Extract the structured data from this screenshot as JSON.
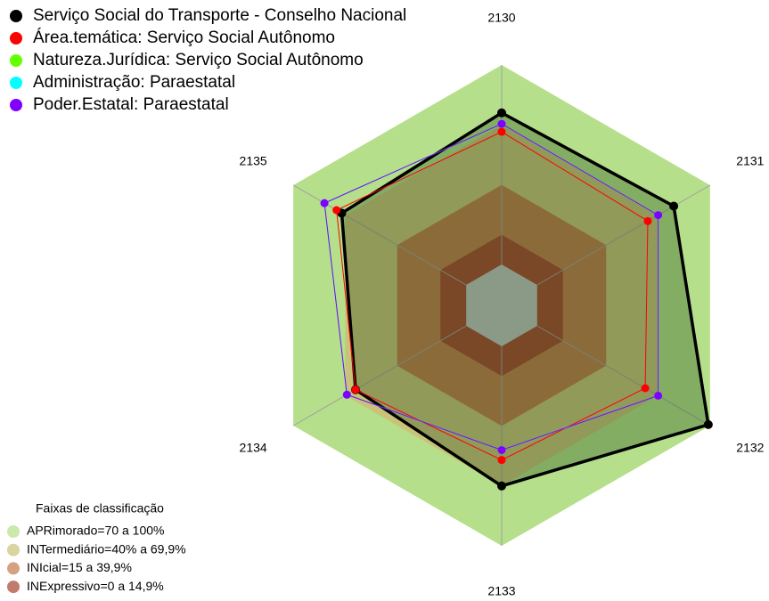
{
  "chart_data": {
    "type": "radar",
    "categories": [
      "2130",
      "2131",
      "2132",
      "2133",
      "2134",
      "2135"
    ],
    "rlim": [
      0,
      100
    ],
    "series": [
      {
        "name": "Serviço Social do Transporte - Conselho Nacional",
        "color": "#000000",
        "values": [
          76,
          79,
          99,
          70,
          64,
          72
        ]
      },
      {
        "name": "Área.temática: Serviço Social Autônomo",
        "color": "#ff0000",
        "values": [
          66.5,
          64,
          62.5,
          57,
          64,
          75
        ]
      },
      {
        "name": "Natureza.Jurídica: Serviço Social Autônomo",
        "color": "#66ff00",
        "values": [
          70.5,
          70,
          70,
          52,
          69,
          82
        ]
      },
      {
        "name": "Administração: Paraestatal",
        "color": "#00ffff",
        "values": [
          70.5,
          70,
          70,
          52,
          69,
          82
        ]
      },
      {
        "name": "Poder.Estatal: Paraestatal",
        "color": "#7f00ff",
        "values": [
          70.5,
          70,
          70,
          52,
          69,
          82
        ]
      }
    ],
    "bands_title": "Faixas de classificação",
    "bands": [
      {
        "name": "APRimorado=70 a 100%",
        "min": 70,
        "max": 100,
        "color": "#b5df8a"
      },
      {
        "name": "INTermediário=40% a 69,9%",
        "min": 40,
        "max": 69.9,
        "color": "#c9c278"
      },
      {
        "name": "INIcial=15 a 39,9%",
        "min": 15,
        "max": 39.9,
        "color": "#c27a4c"
      },
      {
        "name": "INExpressivo=0 a 14,9%",
        "min": 0,
        "max": 14.9,
        "color": "#a6422d"
      }
    ]
  }
}
